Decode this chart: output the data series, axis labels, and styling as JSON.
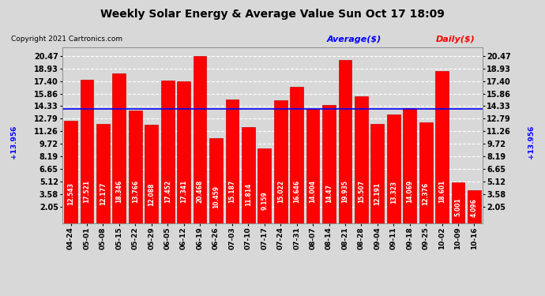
{
  "title": "Weekly Solar Energy & Average Value Sun Oct 17 18:09",
  "copyright": "Copyright 2021 Cartronics.com",
  "legend_average": "Average($)",
  "legend_daily": "Daily($)",
  "average_value": 13.956,
  "average_label_left": "+13.956",
  "average_label_right": "+13.956",
  "categories": [
    "04-24",
    "05-01",
    "05-08",
    "05-15",
    "05-22",
    "05-29",
    "06-05",
    "06-12",
    "06-19",
    "06-26",
    "07-03",
    "07-10",
    "07-17",
    "07-24",
    "07-31",
    "08-07",
    "08-14",
    "08-21",
    "08-28",
    "09-04",
    "09-11",
    "09-18",
    "09-25",
    "10-02",
    "10-09",
    "10-16"
  ],
  "values": [
    12.543,
    17.521,
    12.177,
    18.346,
    13.766,
    12.088,
    17.452,
    17.341,
    20.468,
    10.459,
    15.187,
    11.814,
    9.159,
    15.022,
    16.646,
    14.004,
    14.47,
    19.935,
    15.507,
    12.191,
    13.323,
    14.069,
    12.376,
    18.601,
    5.001,
    4.096
  ],
  "bar_color": "#ff0000",
  "bar_edge_color": "#cc0000",
  "background_color": "#d8d8d8",
  "plot_bg_color": "#d8d8d8",
  "average_line_color": "#0000ff",
  "text_color_in_bar": "#ffffff",
  "yticks": [
    2.05,
    3.58,
    5.12,
    6.65,
    8.19,
    9.72,
    11.26,
    12.79,
    14.33,
    15.86,
    17.4,
    18.93,
    20.47
  ],
  "ylim": [
    0,
    21.5
  ],
  "title_fontsize": 10,
  "copyright_fontsize": 6.5,
  "legend_fontsize": 8,
  "bar_label_fontsize": 5.5,
  "ytick_fontsize": 7,
  "xtick_fontsize": 6.5,
  "avg_label_fontsize": 6.5
}
